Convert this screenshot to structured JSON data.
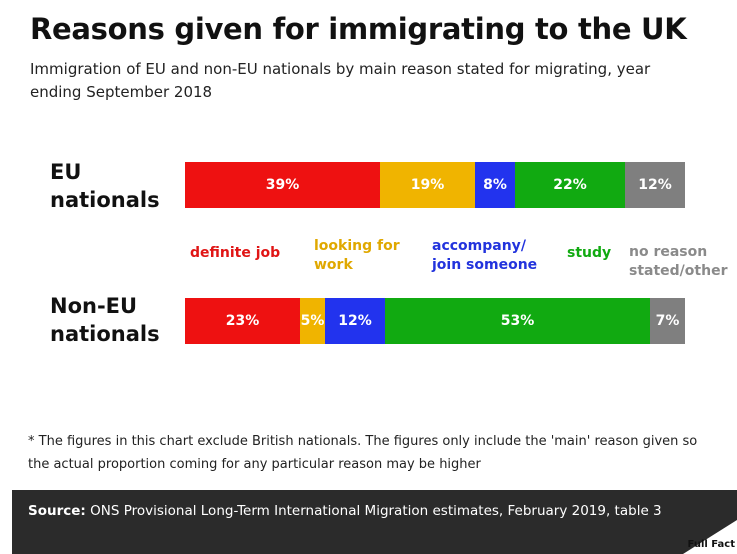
{
  "title": "Reasons given for immigrating to the UK",
  "subtitle": "Immigration of EU and non-EU nationals by main reason stated for migrating, year ending September 2018",
  "chart_data": {
    "type": "bar",
    "orientation": "horizontal",
    "stacked": true,
    "categories": [
      "EU nationals",
      "Non-EU nationals"
    ],
    "series": [
      {
        "name": "definite job",
        "color": "#ee1111",
        "values": [
          39,
          23
        ],
        "labels": [
          "39%",
          "23%"
        ]
      },
      {
        "name": "looking for work",
        "color": "#f0b400",
        "values": [
          19,
          5
        ],
        "labels": [
          "19%",
          "5%"
        ]
      },
      {
        "name": "accompany/ join someone",
        "color": "#2233ee",
        "values": [
          8,
          12
        ],
        "labels": [
          "8%",
          "12%"
        ]
      },
      {
        "name": "study",
        "color": "#11aa11",
        "values": [
          22,
          53
        ],
        "labels": [
          "22%",
          "53%"
        ]
      },
      {
        "name": "no reason stated/other",
        "color": "#7f7f7f",
        "values": [
          12,
          7
        ],
        "labels": [
          "12%",
          "7%"
        ]
      }
    ],
    "legend_lines": [
      [
        "definite job"
      ],
      [
        "looking for",
        "work"
      ],
      [
        "accompany/",
        "join someone"
      ],
      [
        "study"
      ],
      [
        "no reason",
        "stated/other"
      ]
    ],
    "legend_colors": [
      "#e01515",
      "#e0a800",
      "#2233dd",
      "#11aa11",
      "#8a8a8a"
    ],
    "row_label_lines": [
      [
        "EU",
        "nationals"
      ],
      [
        "Non-EU",
        "nationals"
      ]
    ],
    "title": "Reasons given for immigrating to the UK",
    "xlabel": "",
    "ylabel": "",
    "xlim": [
      0,
      100
    ],
    "grid": false,
    "legend_position": "between-bars"
  },
  "note": "* The figures in this chart exclude British nationals. The figures only include the 'main' reason given so the actual proportion coming for any particular reason may be higher",
  "footer": {
    "source_label": "Source:",
    "source_text": " ONS Provisional Long-Term International Migration estimates, February 2019, table 3",
    "logo_text": "Full Fact"
  }
}
